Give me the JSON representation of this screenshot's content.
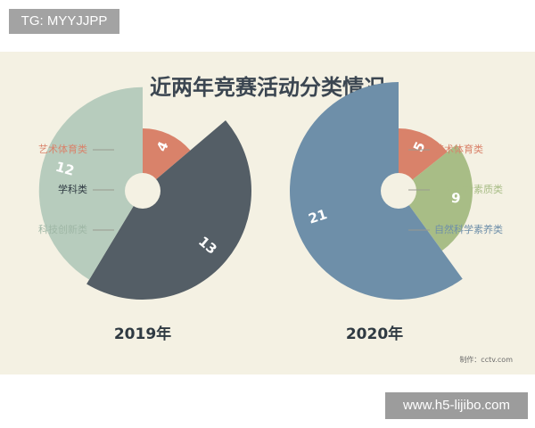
{
  "watermark_top": "TG: MYYJJPP",
  "watermark_bottom": "www.h5-lijibo.com",
  "credit": "制作：cctv.com",
  "colors": {
    "background": "#f4f1e3",
    "title": "#3b4651"
  },
  "chart_data": {
    "type": "pie",
    "style": "rose (radius and angle scaled by value)",
    "title": "近两年竞赛活动分类情况",
    "charts": [
      {
        "label": "2019年",
        "slices": [
          {
            "name": "艺术体育类",
            "value": 4,
            "color": "#d9826a"
          },
          {
            "name": "学科类",
            "value": 13,
            "color": "#545e66"
          },
          {
            "name": "科技创新类",
            "value": 12,
            "color": "#b7ccbd"
          }
        ]
      },
      {
        "label": "2020年",
        "slices": [
          {
            "name": "艺术体育类",
            "value": 5,
            "color": "#d9826a"
          },
          {
            "name": "人文综合素质类",
            "value": 9,
            "color": "#a8bd86"
          },
          {
            "name": "自然科学素养类",
            "value": 21,
            "color": "#6e8fa9"
          }
        ]
      }
    ]
  }
}
